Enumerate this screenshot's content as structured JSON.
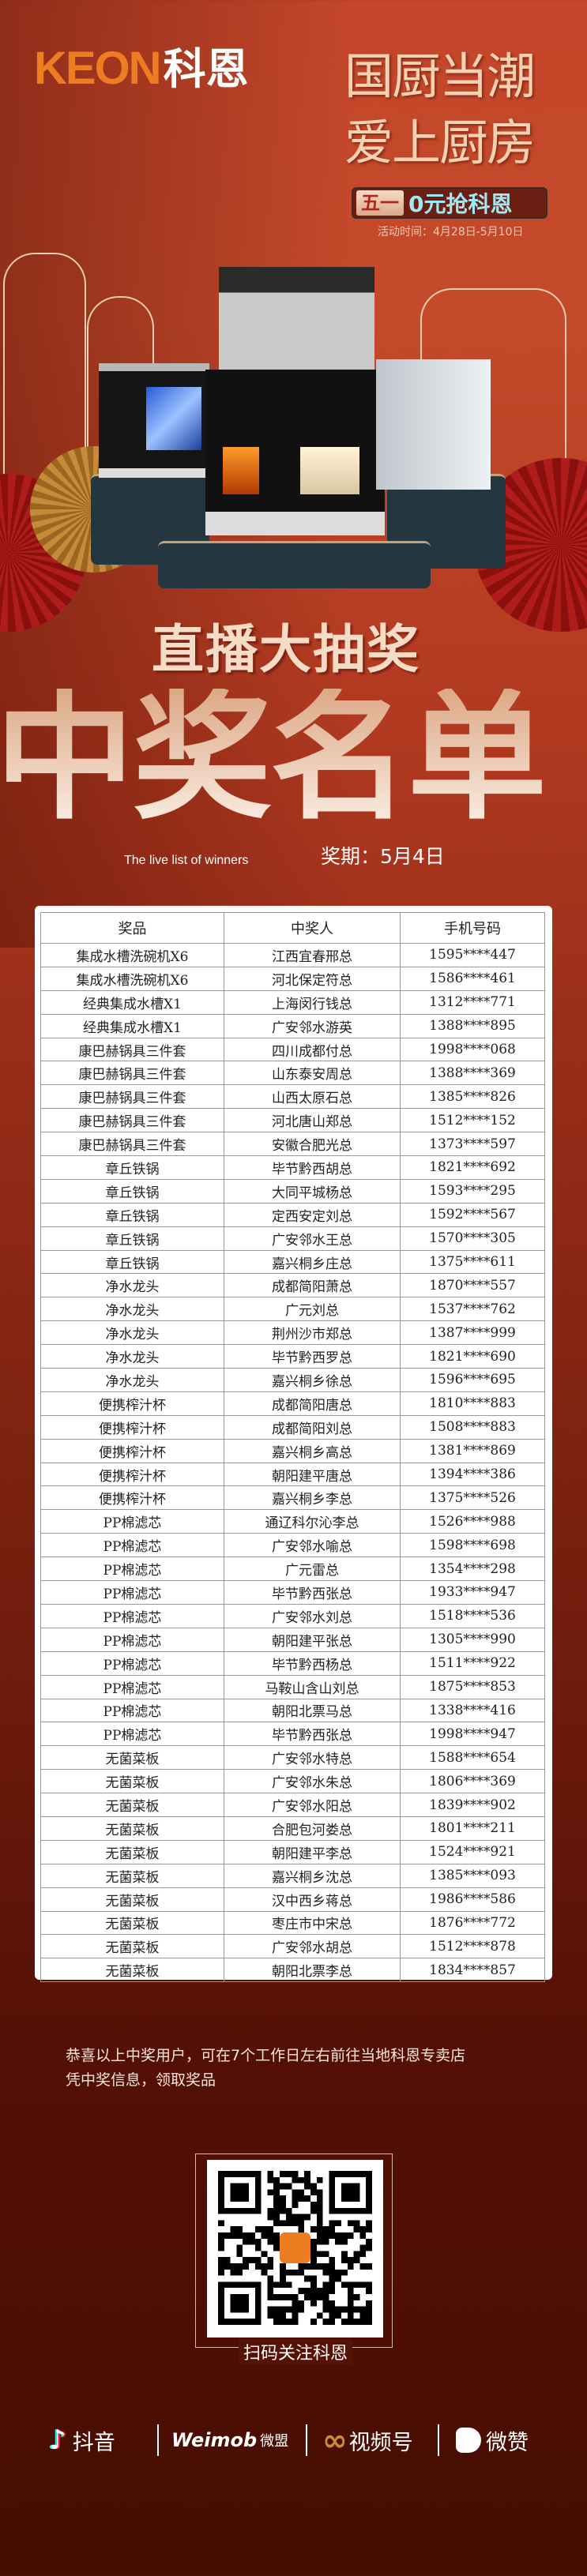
{
  "brand": {
    "logo_en": "KEON",
    "logo_cn": "科恩",
    "accent": "#ee7d22"
  },
  "hero": {
    "line1": "国厨当潮",
    "line2": "爱上厨房",
    "badge_left": "五一",
    "badge_right": "0元抢科恩",
    "date": "活动时间：4月28日-5月10日"
  },
  "title": {
    "sub": "直播大抽奖",
    "main": "中奖名单",
    "english": "The live list of winners",
    "period": "奖期：5月4日"
  },
  "table": {
    "headers": [
      "奖品",
      "中奖人",
      "手机号码"
    ],
    "rows": [
      [
        "集成水槽洗碗机X6",
        "江西宜春邢总",
        "1595****447"
      ],
      [
        "集成水槽洗碗机X6",
        "河北保定符总",
        "1586****461"
      ],
      [
        "经典集成水槽X1",
        "上海闵行钱总",
        "1312****771"
      ],
      [
        "经典集成水槽X1",
        "广安邻水游英",
        "1388****895"
      ],
      [
        "康巴赫锅具三件套",
        "四川成都付总",
        "1998****068"
      ],
      [
        "康巴赫锅具三件套",
        "山东泰安周总",
        "1388****369"
      ],
      [
        "康巴赫锅具三件套",
        "山西太原石总",
        "1385****826"
      ],
      [
        "康巴赫锅具三件套",
        "河北唐山郑总",
        "1512****152"
      ],
      [
        "康巴赫锅具三件套",
        "安徽合肥光总",
        "1373****597"
      ],
      [
        "章丘铁锅",
        "毕节黔西胡总",
        "1821****692"
      ],
      [
        "章丘铁锅",
        "大同平城杨总",
        "1593****295"
      ],
      [
        "章丘铁锅",
        "定西安定刘总",
        "1592****567"
      ],
      [
        "章丘铁锅",
        "广安邻水王总",
        "1570****305"
      ],
      [
        "章丘铁锅",
        "嘉兴桐乡庄总",
        "1375****611"
      ],
      [
        "净水龙头",
        "成都简阳萧总",
        "1870****557"
      ],
      [
        "净水龙头",
        "广元刘总",
        "1537****762"
      ],
      [
        "净水龙头",
        "荆州沙市郑总",
        "1387****999"
      ],
      [
        "净水龙头",
        "毕节黔西罗总",
        "1821****690"
      ],
      [
        "净水龙头",
        "嘉兴桐乡徐总",
        "1596****695"
      ],
      [
        "便携榨汁杯",
        "成都简阳唐总",
        "1810****883"
      ],
      [
        "便携榨汁杯",
        "成都简阳刘总",
        "1508****883"
      ],
      [
        "便携榨汁杯",
        "嘉兴桐乡高总",
        "1381****869"
      ],
      [
        "便携榨汁杯",
        "朝阳建平唐总",
        "1394****386"
      ],
      [
        "便携榨汁杯",
        "嘉兴桐乡李总",
        "1375****526"
      ],
      [
        "PP棉滤芯",
        "通辽科尔沁李总",
        "1526****988"
      ],
      [
        "PP棉滤芯",
        "广安邻水喻总",
        "1598****698"
      ],
      [
        "PP棉滤芯",
        "广元雷总",
        "1354****298"
      ],
      [
        "PP棉滤芯",
        "毕节黔西张总",
        "1933****947"
      ],
      [
        "PP棉滤芯",
        "广安邻水刘总",
        "1518****536"
      ],
      [
        "PP棉滤芯",
        "朝阳建平张总",
        "1305****990"
      ],
      [
        "PP棉滤芯",
        "毕节黔西杨总",
        "1511****922"
      ],
      [
        "PP棉滤芯",
        "马鞍山含山刘总",
        "1875****853"
      ],
      [
        "PP棉滤芯",
        "朝阳北票马总",
        "1338****416"
      ],
      [
        "PP棉滤芯",
        "毕节黔西张总",
        "1998****947"
      ],
      [
        "无菌菜板",
        "广安邻水特总",
        "1588****654"
      ],
      [
        "无菌菜板",
        "广安邻水朱总",
        "1806****369"
      ],
      [
        "无菌菜板",
        "广安邻水阳总",
        "1839****902"
      ],
      [
        "无菌菜板",
        "合肥包河娄总",
        "1801****211"
      ],
      [
        "无菌菜板",
        "朝阳建平李总",
        "1524****921"
      ],
      [
        "无菌菜板",
        "嘉兴桐乡沈总",
        "1385****093"
      ],
      [
        "无菌菜板",
        "汉中西乡蒋总",
        "1986****586"
      ],
      [
        "无菌菜板",
        "枣庄市中宋总",
        "1876****772"
      ],
      [
        "无菌菜板",
        "广安邻水胡总",
        "1512****878"
      ],
      [
        "无菌菜板",
        "朝阳北票李总",
        "1834****857"
      ]
    ]
  },
  "note": {
    "line1": "恭喜以上中奖用户，可在7个工作日左右前往当地科恩专卖店",
    "line2": "凭中奖信息，领取奖品"
  },
  "qr": {
    "caption": "扫码关注科恩",
    "icon": "qr-code-icon"
  },
  "footer": {
    "douyin": "抖音",
    "weimob": "Weimob",
    "weimob_cn": "微盟",
    "channels": "视频号",
    "weizan": "微赞"
  }
}
